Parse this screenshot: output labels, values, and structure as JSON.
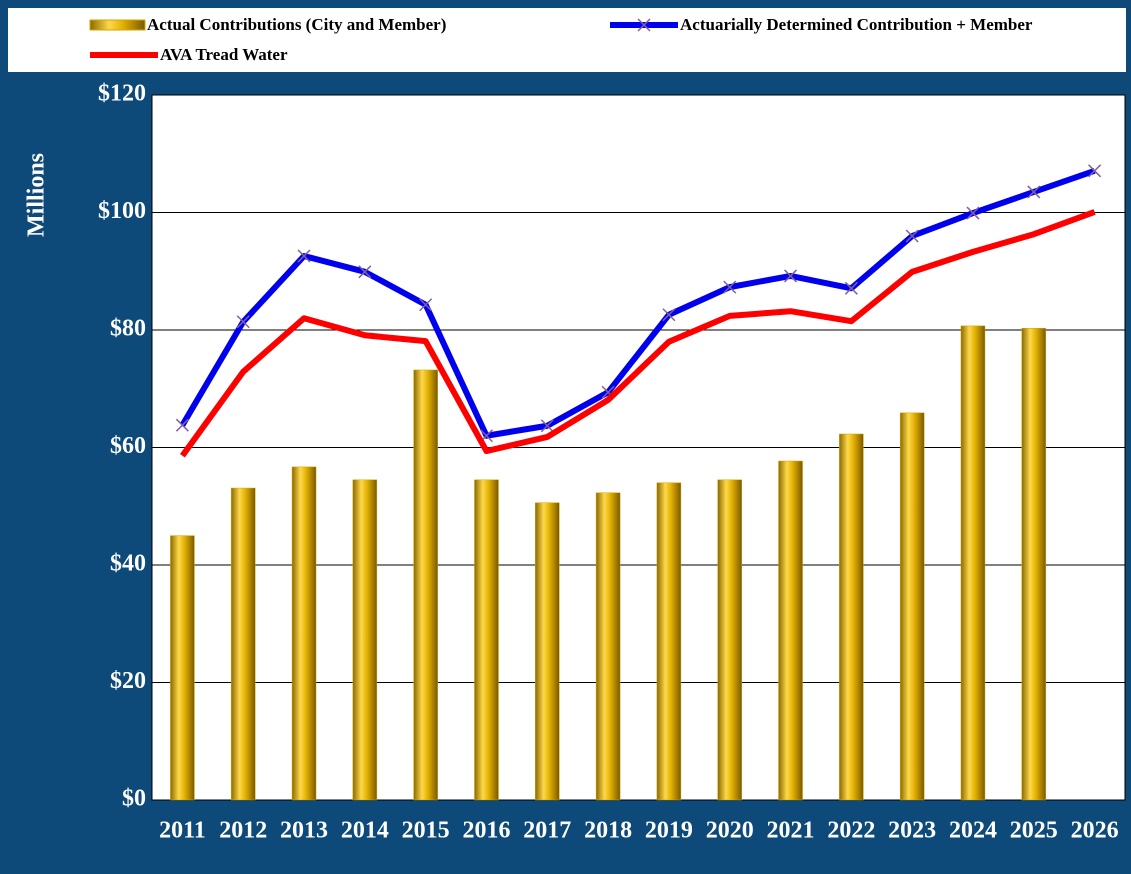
{
  "chart_data": {
    "type": "bar",
    "categories": [
      "2011",
      "2012",
      "2013",
      "2014",
      "2015",
      "2016",
      "2017",
      "2018",
      "2019",
      "2020",
      "2021",
      "2022",
      "2023",
      "2024",
      "2025",
      "2026"
    ],
    "y_label": "Millions",
    "ylim": [
      0,
      120
    ],
    "yticks": [
      {
        "value": 0,
        "label": "$0"
      },
      {
        "value": 20,
        "label": "$20"
      },
      {
        "value": 40,
        "label": "$40"
      },
      {
        "value": 60,
        "label": "$60"
      },
      {
        "value": 80,
        "label": "$80"
      },
      {
        "value": 100,
        "label": "$100"
      },
      {
        "value": 120,
        "label": "$120"
      }
    ],
    "grid": true,
    "series": [
      {
        "name": "Actual Contributions (City and Member)",
        "type": "bar",
        "color": "#d4a400",
        "values": [
          45.0,
          53.1,
          56.7,
          54.5,
          73.2,
          54.5,
          50.6,
          52.3,
          54.0,
          54.5,
          57.7,
          62.3,
          65.9,
          80.7,
          80.3,
          null
        ]
      },
      {
        "name": "Actuarially Determined Contribution + Member",
        "type": "line",
        "color": "#0000ee",
        "marker": "x",
        "values": [
          63.8,
          81.4,
          92.6,
          89.9,
          84.3,
          62.0,
          63.7,
          69.4,
          82.6,
          87.3,
          89.2,
          87.1,
          96.0,
          99.9,
          103.5,
          107.1
        ]
      },
      {
        "name": "AVA Tread Water",
        "type": "line",
        "color": "#ff0000",
        "values": [
          58.6,
          72.9,
          82.0,
          79.1,
          78.1,
          59.4,
          61.8,
          68.1,
          78.0,
          82.4,
          83.2,
          81.5,
          89.9,
          93.3,
          96.3,
          100.1
        ]
      }
    ]
  }
}
